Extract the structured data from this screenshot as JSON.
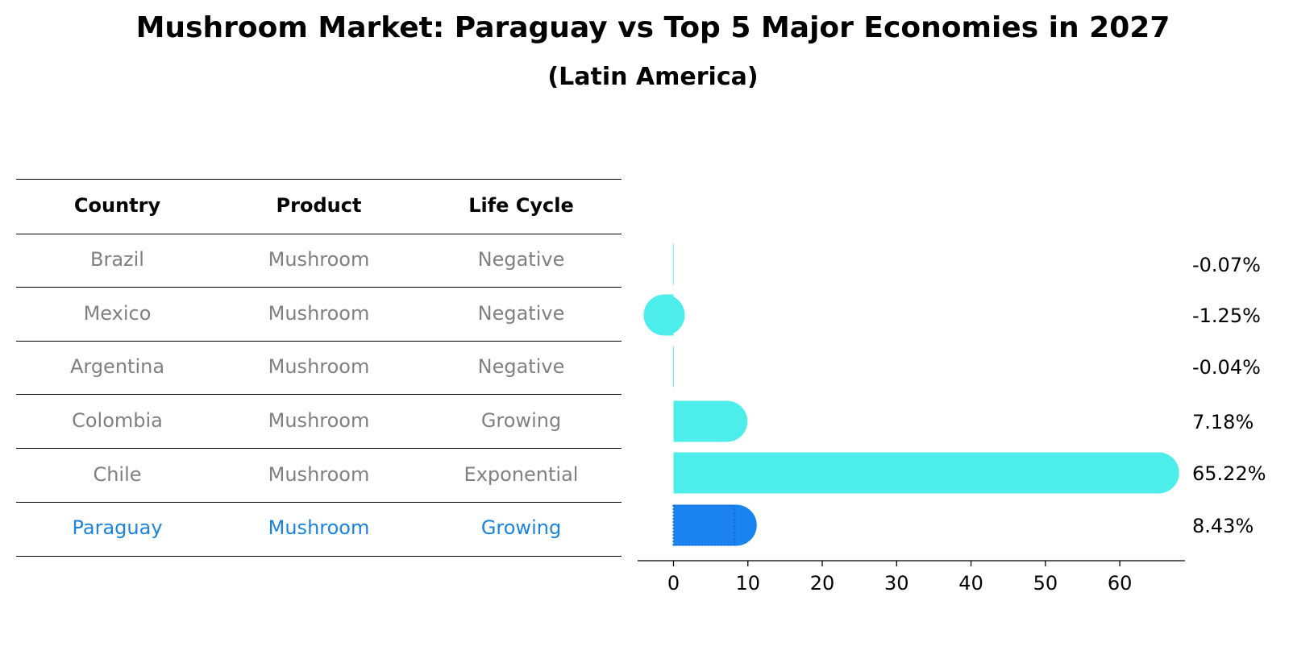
{
  "title": "Mushroom Market: Paraguay vs Top 5 Major Economies in 2027",
  "subtitle": "(Latin America)",
  "table": {
    "headers": [
      "Country",
      "Product",
      "Life Cycle"
    ],
    "rows": [
      [
        "Brazil",
        "Mushroom",
        "Negative"
      ],
      [
        "Mexico",
        "Mushroom",
        "Negative"
      ],
      [
        "Argentina",
        "Mushroom",
        "Negative"
      ],
      [
        "Colombia",
        "Mushroom",
        "Growing"
      ],
      [
        "Chile",
        "Mushroom",
        "Exponential"
      ],
      [
        "Paraguay",
        "Mushroom",
        "Growing"
      ]
    ]
  },
  "colors": {
    "bar": "#4cedeb",
    "highlight_bar": "#1a83f0",
    "highlight_text": "#1a83e0",
    "muted_text": "#808080"
  },
  "chart_data": {
    "type": "bar",
    "orientation": "horizontal",
    "categories": [
      "Brazil",
      "Mexico",
      "Argentina",
      "Colombia",
      "Chile",
      "Paraguay"
    ],
    "values": [
      -0.07,
      -1.25,
      -0.04,
      7.18,
      65.22,
      8.43
    ],
    "value_labels": [
      "-0.07%",
      "-1.25%",
      "-0.04%",
      "7.18%",
      "65.22%",
      "8.43%"
    ],
    "highlight": "Paraguay",
    "xticks": [
      0,
      10,
      20,
      30,
      40,
      50,
      60
    ],
    "xtick_labels": [
      "0",
      "10",
      "20",
      "30",
      "40",
      "50",
      "60"
    ],
    "xlim": [
      -4.78,
      68.45
    ],
    "xlabel": "",
    "ylabel": "",
    "grid": false,
    "legend": "none"
  }
}
